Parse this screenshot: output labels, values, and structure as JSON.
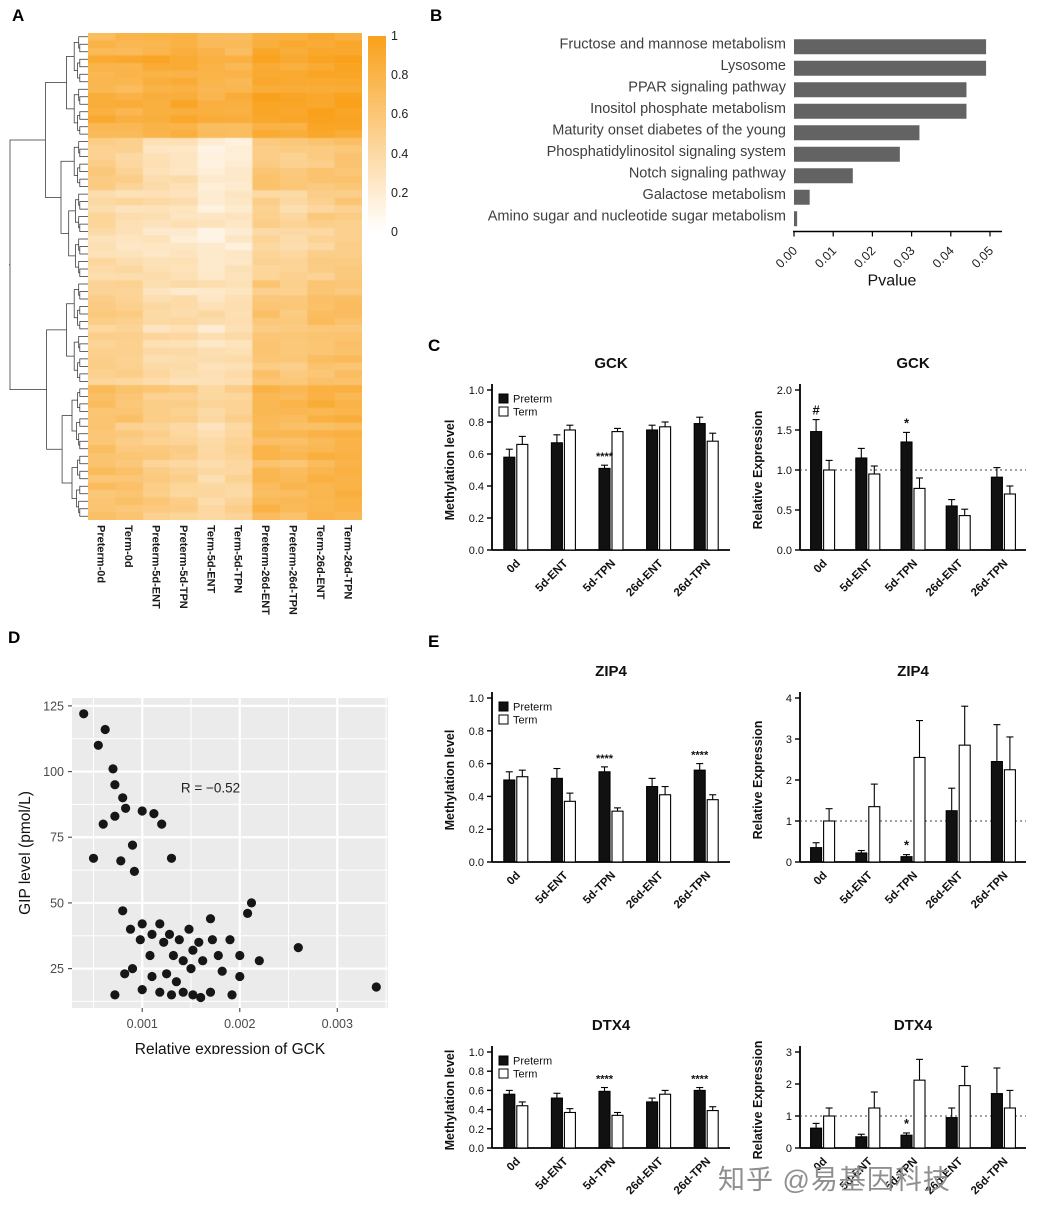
{
  "figure": {
    "panels": {
      "a": "A",
      "b": "B",
      "c": "C",
      "d": "D",
      "e": "E"
    },
    "watermark": "知乎 @易基因科技"
  },
  "chart_data": [
    {
      "id": "methylation_heatmap",
      "type": "heatmap",
      "columns": [
        "Preterm-0d",
        "Term-0d",
        "Preterm-5d-ENT",
        "Preterm-5d-TPN",
        "Term-5d-ENT",
        "Term-5d-TPN",
        "Preterm-26d-ENT",
        "Preterm-26d-TPN",
        "Term-26d-ENT",
        "Term-26d-TPN"
      ],
      "colorscale": {
        "min": 0,
        "max": 1,
        "low": "#FFFFFF",
        "high": "#F9A11B"
      },
      "colorbar_ticks": [
        "1",
        "0.8",
        "0.6",
        "0.4",
        "0.2",
        "0"
      ],
      "row_groups": [
        {
          "rows": 14,
          "base": [
            0.82,
            0.8,
            0.85,
            0.88,
            0.8,
            0.78,
            0.92,
            0.9,
            0.95,
            0.93
          ]
        },
        {
          "rows": 7,
          "base": [
            0.5,
            0.45,
            0.3,
            0.28,
            0.12,
            0.15,
            0.55,
            0.5,
            0.55,
            0.6
          ]
        },
        {
          "rows": 12,
          "base": [
            0.38,
            0.35,
            0.3,
            0.28,
            0.22,
            0.25,
            0.45,
            0.42,
            0.5,
            0.52
          ]
        },
        {
          "rows": 14,
          "base": [
            0.5,
            0.48,
            0.38,
            0.35,
            0.3,
            0.32,
            0.58,
            0.55,
            0.62,
            0.65
          ]
        },
        {
          "rows": 18,
          "base": [
            0.62,
            0.58,
            0.5,
            0.45,
            0.38,
            0.42,
            0.72,
            0.7,
            0.78,
            0.8
          ]
        }
      ]
    },
    {
      "id": "pathway_pvalues",
      "type": "bar",
      "orientation": "horizontal",
      "bar_color": "#636363",
      "categories": [
        "Fructose and mannose metabolism",
        "Lysosome",
        "PPAR signaling pathway",
        "Inositol phosphate metabolism",
        "Maturity onset diabetes of the young",
        "Phosphatidylinositol signaling system",
        "Notch signaling pathway",
        "Galactose metabolism",
        "Amino sugar and nucleotide sugar metabolism"
      ],
      "values": [
        0.049,
        0.049,
        0.044,
        0.044,
        0.032,
        0.027,
        0.015,
        0.004,
        0.0008
      ],
      "xlabel": "Pvalue",
      "xticks": [
        0,
        0.01,
        0.02,
        0.03,
        0.04,
        0.05
      ],
      "xtick_labels": [
        "0.00",
        "0.01",
        "0.02",
        "0.03",
        "0.04",
        "0.05"
      ],
      "xlim": [
        0,
        0.052
      ]
    },
    {
      "id": "gck_methylation",
      "type": "grouped_bar",
      "title": "GCK",
      "ylabel": "Methylation level",
      "ylim": [
        0,
        1.0
      ],
      "yticks": [
        0,
        0.2,
        0.4,
        0.6,
        0.8,
        1.0
      ],
      "ytick_labels": [
        "0.0",
        "0.2",
        "0.4",
        "0.6",
        "0.8",
        "1.0"
      ],
      "categories": [
        "0d",
        "5d-ENT",
        "5d-TPN",
        "26d-ENT",
        "26d-TPN"
      ],
      "legend": true,
      "refline": null,
      "series": [
        {
          "name": "Preterm",
          "fill": "#111111",
          "values": [
            0.58,
            0.67,
            0.51,
            0.75,
            0.79
          ],
          "err": [
            0.05,
            0.05,
            0.02,
            0.03,
            0.04
          ]
        },
        {
          "name": "Term",
          "fill": "#ffffff",
          "values": [
            0.66,
            0.75,
            0.74,
            0.77,
            0.68
          ],
          "err": [
            0.05,
            0.03,
            0.02,
            0.03,
            0.05
          ]
        }
      ],
      "annotations": [
        {
          "series": 0,
          "index": 2,
          "text": "****"
        }
      ]
    },
    {
      "id": "gck_expression",
      "type": "grouped_bar",
      "title": "GCK",
      "ylabel": "Relative Expression",
      "ylim": [
        0,
        2.0
      ],
      "yticks": [
        0,
        0.5,
        1.0,
        1.5,
        2.0
      ],
      "ytick_labels": [
        "0.0",
        "0.5",
        "1.0",
        "1.5",
        "2.0"
      ],
      "categories": [
        "0d",
        "5d-ENT",
        "5d-TPN",
        "26d-ENT",
        "26d-TPN"
      ],
      "legend": false,
      "refline": 1.0,
      "series": [
        {
          "name": "Preterm",
          "fill": "#111111",
          "values": [
            1.48,
            1.15,
            1.35,
            0.55,
            0.91
          ],
          "err": [
            0.15,
            0.12,
            0.12,
            0.08,
            0.12
          ]
        },
        {
          "name": "Term",
          "fill": "#ffffff",
          "values": [
            1.0,
            0.95,
            0.77,
            0.43,
            0.7
          ],
          "err": [
            0.12,
            0.1,
            0.13,
            0.08,
            0.1
          ]
        }
      ],
      "annotations": [
        {
          "series": 0,
          "index": 0,
          "text": "#"
        },
        {
          "series": 0,
          "index": 2,
          "text": "*"
        }
      ]
    },
    {
      "id": "gip_gck_scatter",
      "type": "scatter",
      "xlabel": "Relative expression of GCK",
      "ylabel": "GIP level (pmol/L)",
      "annotation": {
        "text": "R = −0.52",
        "x": 0.0017,
        "y": 92
      },
      "xlim": [
        0.00028,
        0.00352
      ],
      "ylim": [
        10,
        128
      ],
      "xticks": [
        0.001,
        0.002,
        0.003
      ],
      "xtick_labels": [
        "0.001",
        "0.002",
        "0.003"
      ],
      "yticks": [
        25,
        50,
        75,
        100,
        125
      ],
      "ytick_labels": [
        "25",
        "50",
        "75",
        "100",
        "125"
      ],
      "points": [
        [
          0.0004,
          122
        ],
        [
          0.00055,
          110
        ],
        [
          0.00062,
          116
        ],
        [
          0.0007,
          101
        ],
        [
          0.00072,
          95
        ],
        [
          0.0008,
          90
        ],
        [
          0.00083,
          86
        ],
        [
          0.00072,
          83
        ],
        [
          0.0006,
          80
        ],
        [
          0.0005,
          67
        ],
        [
          0.00078,
          66
        ],
        [
          0.0009,
          72
        ],
        [
          0.00092,
          62
        ],
        [
          0.001,
          85
        ],
        [
          0.00112,
          84
        ],
        [
          0.0012,
          80
        ],
        [
          0.0013,
          67
        ],
        [
          0.0008,
          47
        ],
        [
          0.00088,
          40
        ],
        [
          0.001,
          42
        ],
        [
          0.00098,
          36
        ],
        [
          0.0011,
          38
        ],
        [
          0.00108,
          30
        ],
        [
          0.00118,
          42
        ],
        [
          0.00122,
          35
        ],
        [
          0.00128,
          38
        ],
        [
          0.00132,
          30
        ],
        [
          0.00138,
          36
        ],
        [
          0.00142,
          28
        ],
        [
          0.00148,
          40
        ],
        [
          0.00152,
          32
        ],
        [
          0.0015,
          25
        ],
        [
          0.00158,
          35
        ],
        [
          0.00162,
          28
        ],
        [
          0.0017,
          44
        ],
        [
          0.00172,
          36
        ],
        [
          0.00178,
          30
        ],
        [
          0.00182,
          24
        ],
        [
          0.0019,
          36
        ],
        [
          0.002,
          30
        ],
        [
          0.00208,
          46
        ],
        [
          0.00212,
          50
        ],
        [
          0.0022,
          28
        ],
        [
          0.0009,
          25
        ],
        [
          0.00082,
          23
        ],
        [
          0.00072,
          15
        ],
        [
          0.001,
          17
        ],
        [
          0.00118,
          16
        ],
        [
          0.0013,
          15
        ],
        [
          0.00142,
          16
        ],
        [
          0.00152,
          15
        ],
        [
          0.0016,
          14
        ],
        [
          0.0017,
          16
        ],
        [
          0.0026,
          33
        ],
        [
          0.0034,
          18
        ],
        [
          0.0011,
          22
        ],
        [
          0.00192,
          15
        ],
        [
          0.002,
          22
        ],
        [
          0.00125,
          23
        ],
        [
          0.00135,
          20
        ]
      ]
    },
    {
      "id": "zip4_methylation",
      "type": "grouped_bar",
      "title": "ZIP4",
      "ylabel": "Methylation level",
      "ylim": [
        0,
        1.0
      ],
      "yticks": [
        0,
        0.2,
        0.4,
        0.6,
        0.8,
        1.0
      ],
      "ytick_labels": [
        "0.0",
        "0.2",
        "0.4",
        "0.6",
        "0.8",
        "1.0"
      ],
      "categories": [
        "0d",
        "5d-ENT",
        "5d-TPN",
        "26d-ENT",
        "26d-TPN"
      ],
      "legend": true,
      "refline": null,
      "series": [
        {
          "name": "Preterm",
          "fill": "#111111",
          "values": [
            0.5,
            0.51,
            0.55,
            0.46,
            0.56
          ],
          "err": [
            0.05,
            0.06,
            0.03,
            0.05,
            0.04
          ]
        },
        {
          "name": "Term",
          "fill": "#ffffff",
          "values": [
            0.52,
            0.37,
            0.31,
            0.41,
            0.38
          ],
          "err": [
            0.04,
            0.05,
            0.02,
            0.05,
            0.03
          ]
        }
      ],
      "annotations": [
        {
          "series": 0,
          "index": 2,
          "text": "****"
        },
        {
          "series": 0,
          "index": 4,
          "text": "****"
        }
      ]
    },
    {
      "id": "zip4_expression",
      "type": "grouped_bar",
      "title": "ZIP4",
      "ylabel": "Relative Expression",
      "ylim": [
        0,
        4
      ],
      "yticks": [
        0,
        1,
        2,
        3,
        4
      ],
      "ytick_labels": [
        "0",
        "1",
        "2",
        "3",
        "4"
      ],
      "categories": [
        "0d",
        "5d-ENT",
        "5d-TPN",
        "26d-ENT",
        "26d-TPN"
      ],
      "legend": false,
      "refline": 1.0,
      "series": [
        {
          "name": "Preterm",
          "fill": "#111111",
          "values": [
            0.35,
            0.22,
            0.13,
            1.25,
            2.45
          ],
          "err": [
            0.12,
            0.06,
            0.05,
            0.55,
            0.9
          ]
        },
        {
          "name": "Term",
          "fill": "#ffffff",
          "values": [
            1.0,
            1.35,
            2.55,
            2.85,
            2.25
          ],
          "err": [
            0.3,
            0.55,
            0.9,
            0.95,
            0.8
          ]
        }
      ],
      "annotations": [
        {
          "series": 0,
          "index": 2,
          "text": "*"
        }
      ]
    },
    {
      "id": "dtx4_methylation",
      "type": "grouped_bar",
      "title": "DTX4",
      "ylabel": "Methylation level",
      "ylim": [
        0,
        1.0
      ],
      "yticks": [
        0,
        0.2,
        0.4,
        0.6,
        0.8,
        1.0
      ],
      "ytick_labels": [
        "0.0",
        "0.2",
        "0.4",
        "0.6",
        "0.8",
        "1.0"
      ],
      "categories": [
        "0d",
        "5d-ENT",
        "5d-TPN",
        "26d-ENT",
        "26d-TPN"
      ],
      "legend": true,
      "refline": null,
      "series": [
        {
          "name": "Preterm",
          "fill": "#111111",
          "values": [
            0.56,
            0.52,
            0.59,
            0.48,
            0.6
          ],
          "err": [
            0.04,
            0.05,
            0.04,
            0.04,
            0.03
          ]
        },
        {
          "name": "Term",
          "fill": "#ffffff",
          "values": [
            0.44,
            0.37,
            0.34,
            0.56,
            0.39
          ],
          "err": [
            0.04,
            0.04,
            0.03,
            0.04,
            0.04
          ]
        }
      ],
      "annotations": [
        {
          "series": 0,
          "index": 2,
          "text": "****"
        },
        {
          "series": 0,
          "index": 4,
          "text": "****"
        }
      ]
    },
    {
      "id": "dtx4_expression",
      "type": "grouped_bar",
      "title": "DTX4",
      "ylabel": "Relative Expression",
      "ylim": [
        0,
        3
      ],
      "yticks": [
        0,
        1,
        2,
        3
      ],
      "ytick_labels": [
        "0",
        "1",
        "2",
        "3"
      ],
      "categories": [
        "0d",
        "5d-ENT",
        "5d-TPN",
        "26d-ENT",
        "26d-TPN"
      ],
      "legend": false,
      "refline": 1.0,
      "series": [
        {
          "name": "Preterm",
          "fill": "#111111",
          "values": [
            0.62,
            0.35,
            0.4,
            0.95,
            1.7
          ],
          "err": [
            0.15,
            0.08,
            0.07,
            0.3,
            0.8
          ]
        },
        {
          "name": "Term",
          "fill": "#ffffff",
          "values": [
            1.0,
            1.25,
            2.12,
            1.95,
            1.25
          ],
          "err": [
            0.25,
            0.5,
            0.65,
            0.6,
            0.55
          ]
        }
      ],
      "annotations": [
        {
          "series": 0,
          "index": 2,
          "text": "*"
        }
      ]
    }
  ]
}
